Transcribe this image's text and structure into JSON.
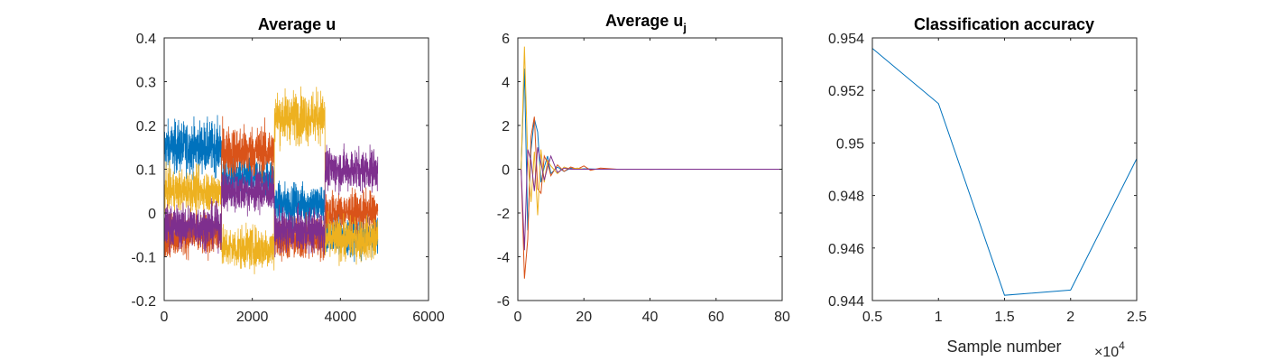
{
  "figure": {
    "panels": [
      {
        "title": "Average u",
        "xticks": [
          "0",
          "2000",
          "4000",
          "6000"
        ],
        "yticks": [
          "-0.2",
          "-0.1",
          "0",
          "0.1",
          "0.2",
          "0.3",
          "0.4"
        ]
      },
      {
        "title_main": "Average u",
        "title_sub": "j",
        "xticks": [
          "0",
          "20",
          "40",
          "60",
          "80"
        ],
        "yticks": [
          "-6",
          "-4",
          "-2",
          "0",
          "2",
          "4",
          "6"
        ]
      },
      {
        "title": "Classification accuracy",
        "xticks": [
          "0.5",
          "1",
          "1.5",
          "2",
          "2.5"
        ],
        "yticks": [
          "0.944",
          "0.946",
          "0.948",
          "0.95",
          "0.952",
          "0.954"
        ],
        "xlabel": "Sample number",
        "exponent_base": "×10",
        "exponent_power": "4"
      }
    ]
  },
  "colors": [
    "#0072BD",
    "#D95319",
    "#EDB120",
    "#7E2F8E"
  ],
  "chart_data": [
    {
      "type": "line",
      "title": "Average u",
      "xlim": [
        0,
        6000
      ],
      "ylim": [
        -0.2,
        0.4
      ],
      "n_points": 4850,
      "segments": [
        {
          "x": [
            0,
            1300
          ],
          "means": {
            "blue": 0.15,
            "orange": -0.05,
            "yellow": 0.05,
            "purple": -0.03
          }
        },
        {
          "x": [
            1300,
            2500
          ],
          "means": {
            "blue": 0.08,
            "orange": 0.14,
            "yellow": -0.08,
            "purple": 0.05
          }
        },
        {
          "x": [
            2500,
            3650
          ],
          "means": {
            "blue": 0.02,
            "orange": -0.06,
            "yellow": 0.22,
            "purple": -0.04
          }
        },
        {
          "x": [
            3650,
            4850
          ],
          "means": {
            "blue": -0.05,
            "orange": 0.0,
            "yellow": -0.06,
            "purple": 0.1
          }
        }
      ],
      "series": [
        {
          "color": "#0072BD"
        },
        {
          "color": "#D95319"
        },
        {
          "color": "#EDB120"
        },
        {
          "color": "#7E2F8E"
        }
      ],
      "grid": false
    },
    {
      "type": "line",
      "xlim": [
        0,
        80
      ],
      "ylim": [
        -6,
        6
      ],
      "series": [
        {
          "color": "#0072BD",
          "x": [
            1,
            2,
            3,
            4,
            5,
            6,
            7,
            8,
            9,
            10,
            12,
            14,
            16,
            18,
            20,
            25,
            30,
            40,
            50,
            60,
            70,
            80
          ],
          "y": [
            0,
            4.6,
            -2.8,
            0.9,
            2.3,
            1.7,
            -0.6,
            0.1,
            0.6,
            -0.2,
            0.1,
            -0.1,
            0.05,
            0,
            0.02,
            0,
            0,
            0,
            0,
            0,
            0,
            0
          ]
        },
        {
          "color": "#D95319",
          "x": [
            1,
            2,
            3,
            4,
            5,
            6,
            7,
            8,
            9,
            10,
            12,
            14,
            16,
            18,
            20,
            22,
            25,
            30,
            40,
            50,
            60,
            70,
            80
          ],
          "y": [
            0,
            -5,
            -3.2,
            1.5,
            2.4,
            -0.9,
            -1.1,
            0.6,
            0.3,
            -0.3,
            0.2,
            -0.1,
            0.1,
            0,
            0.15,
            -0.05,
            0.05,
            0,
            0,
            0,
            0,
            0,
            0
          ]
        },
        {
          "color": "#EDB120",
          "x": [
            1,
            2,
            3,
            4,
            5,
            6,
            7,
            8,
            9,
            10,
            12,
            14,
            16,
            18,
            20,
            25,
            30,
            40,
            50,
            60,
            70,
            80
          ],
          "y": [
            0,
            5.6,
            0.5,
            -1.5,
            0.8,
            -2.1,
            0.9,
            -0.6,
            0.4,
            0.15,
            -0.2,
            0.1,
            0,
            0.05,
            0,
            0,
            0,
            0,
            0,
            0,
            0,
            0
          ]
        },
        {
          "color": "#7E2F8E",
          "x": [
            1,
            2,
            3,
            4,
            5,
            6,
            7,
            8,
            9,
            10,
            12,
            14,
            16,
            18,
            20,
            25,
            30,
            40,
            50,
            60,
            70,
            80
          ],
          "y": [
            0,
            -3.7,
            0.9,
            0.4,
            -1,
            1,
            0.3,
            -0.5,
            0.1,
            0.6,
            -0.15,
            0.05,
            0,
            0,
            0,
            0,
            0,
            0,
            0,
            0,
            0,
            0
          ]
        }
      ],
      "grid": false
    },
    {
      "type": "line",
      "title": "Classification accuracy",
      "xlabel": "Sample number",
      "xlim": [
        5000,
        25000
      ],
      "ylim": [
        0.944,
        0.954
      ],
      "series": [
        {
          "color": "#0072BD",
          "x": [
            5000,
            10000,
            15000,
            20000,
            25000
          ],
          "y": [
            0.9536,
            0.9515,
            0.9442,
            0.9444,
            0.9494
          ]
        }
      ],
      "grid": false
    }
  ]
}
